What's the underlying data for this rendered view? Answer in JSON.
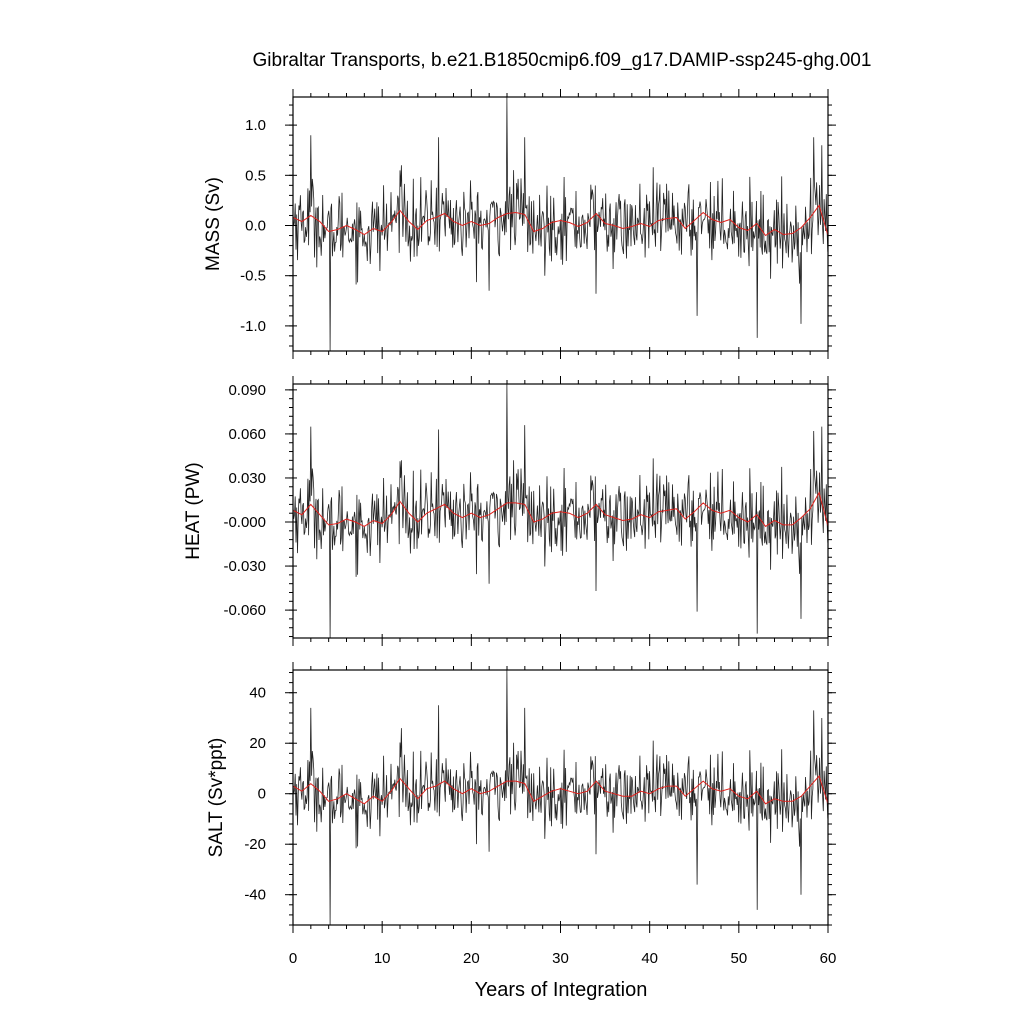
{
  "title": "Gibraltar Transports, b.e21.B1850cmip6.f09_g17.DAMIP-ssp245-ghg.001",
  "xlabel": "Years of Integration",
  "colors": {
    "raw": "#222222",
    "smooth": "#e0201b",
    "axis": "#000000",
    "background": "#ffffff"
  },
  "chart_data": [
    {
      "type": "line",
      "panel": "mass",
      "ylabel": "MASS (Sv)",
      "xlim": [
        0,
        60
      ],
      "ylim": [
        -1.25,
        1.28
      ],
      "x_ticks": [
        0,
        10,
        20,
        30,
        40,
        50,
        60
      ],
      "y_ticks": [
        1.0,
        0.5,
        0.0,
        -0.5,
        -1.0
      ],
      "y_tick_labels": [
        "1.0",
        "0.5",
        "0.0",
        "-0.5",
        "-1.0"
      ],
      "series": [
        {
          "role": "monthly",
          "sample_interval_years": 0.0833,
          "noise_std": 0.19,
          "peaks": [
            [
              2.0,
              0.9
            ],
            [
              4.2,
              -1.25
            ],
            [
              10.2,
              0.4
            ],
            [
              12.2,
              0.6
            ],
            [
              16.3,
              0.88
            ],
            [
              22.0,
              -0.65
            ],
            [
              24.0,
              1.28
            ],
            [
              26.0,
              0.88
            ],
            [
              34.0,
              -0.68
            ],
            [
              45.3,
              -0.9
            ],
            [
              52.1,
              -1.12
            ],
            [
              57.0,
              -0.98
            ],
            [
              58.4,
              0.88
            ],
            [
              59.3,
              0.8
            ]
          ]
        },
        {
          "role": "running-mean",
          "x": [
            0,
            1,
            2,
            3,
            4,
            5,
            6,
            7,
            8,
            9,
            10,
            11,
            12,
            13,
            14,
            15,
            16,
            17,
            18,
            19,
            20,
            21,
            22,
            23,
            24,
            25,
            26,
            27,
            28,
            29,
            30,
            31,
            32,
            33,
            34,
            35,
            36,
            37,
            38,
            39,
            40,
            41,
            42,
            43,
            44,
            45,
            46,
            47,
            48,
            49,
            50,
            51,
            52,
            53,
            54,
            55,
            56,
            57,
            58,
            59,
            60
          ],
          "y": [
            0.08,
            0.04,
            0.1,
            0.04,
            -0.06,
            -0.04,
            0.0,
            -0.04,
            -0.09,
            -0.03,
            -0.06,
            0.03,
            0.15,
            0.04,
            -0.04,
            0.05,
            0.08,
            0.12,
            0.04,
            0.0,
            0.04,
            0.0,
            0.02,
            0.08,
            0.12,
            0.13,
            0.11,
            -0.06,
            -0.03,
            0.03,
            0.05,
            0.03,
            -0.01,
            0.03,
            0.12,
            0.02,
            0.0,
            -0.03,
            -0.01,
            0.02,
            -0.01,
            0.05,
            0.07,
            0.08,
            -0.03,
            0.05,
            0.13,
            0.06,
            0.03,
            0.06,
            -0.02,
            -0.05,
            0.02,
            -0.1,
            -0.04,
            -0.09,
            -0.08,
            -0.02,
            0.08,
            0.2,
            -0.1
          ]
        }
      ]
    },
    {
      "type": "line",
      "panel": "heat",
      "ylabel": "HEAT (PW)",
      "xlim": [
        0,
        60
      ],
      "ylim": [
        -0.079,
        0.094
      ],
      "x_ticks": [
        0,
        10,
        20,
        30,
        40,
        50,
        60
      ],
      "y_ticks": [
        0.09,
        0.06,
        0.03,
        0.0,
        -0.03,
        -0.06
      ],
      "y_tick_labels": [
        "0.090",
        "0.060",
        "0.030",
        "-0.000",
        "-0.030",
        "-0.060"
      ],
      "series": [
        {
          "role": "monthly",
          "sample_interval_years": 0.0833,
          "noise_std": 0.013,
          "peaks": [
            [
              2.0,
              0.065
            ],
            [
              4.2,
              -0.079
            ],
            [
              10.2,
              0.03
            ],
            [
              12.2,
              0.042
            ],
            [
              16.3,
              0.063
            ],
            [
              22.0,
              -0.042
            ],
            [
              24.0,
              0.094
            ],
            [
              26.0,
              0.066
            ],
            [
              34.0,
              -0.047
            ],
            [
              45.3,
              -0.061
            ],
            [
              52.1,
              -0.076
            ],
            [
              57.0,
              -0.066
            ],
            [
              58.4,
              0.062
            ],
            [
              59.3,
              0.065
            ]
          ]
        },
        {
          "role": "running-mean",
          "x": [
            0,
            1,
            2,
            3,
            4,
            5,
            6,
            7,
            8,
            9,
            10,
            11,
            12,
            13,
            14,
            15,
            16,
            17,
            18,
            19,
            20,
            21,
            22,
            23,
            24,
            25,
            26,
            27,
            28,
            29,
            30,
            31,
            32,
            33,
            34,
            35,
            36,
            37,
            38,
            39,
            40,
            41,
            42,
            43,
            44,
            45,
            46,
            47,
            48,
            49,
            50,
            51,
            52,
            53,
            54,
            55,
            56,
            57,
            58,
            59,
            60
          ],
          "y": [
            0.008,
            0.005,
            0.012,
            0.005,
            -0.002,
            -0.001,
            0.002,
            0.0,
            -0.003,
            0.001,
            -0.001,
            0.005,
            0.014,
            0.006,
            0.0,
            0.006,
            0.009,
            0.012,
            0.006,
            0.003,
            0.006,
            0.003,
            0.005,
            0.009,
            0.013,
            0.013,
            0.012,
            0.0,
            0.002,
            0.006,
            0.007,
            0.006,
            0.003,
            0.006,
            0.012,
            0.005,
            0.003,
            0.001,
            0.002,
            0.005,
            0.003,
            0.007,
            0.008,
            0.009,
            0.002,
            0.007,
            0.013,
            0.008,
            0.006,
            0.008,
            0.003,
            0.0,
            0.005,
            -0.003,
            0.001,
            -0.002,
            -0.002,
            0.003,
            0.009,
            0.02,
            -0.003
          ]
        }
      ]
    },
    {
      "type": "line",
      "panel": "salt",
      "ylabel": "SALT (Sv*ppt)",
      "xlim": [
        0,
        60
      ],
      "ylim": [
        -52,
        49
      ],
      "x_ticks": [
        0,
        10,
        20,
        30,
        40,
        50,
        60
      ],
      "x_tick_labels": [
        "0",
        "10",
        "20",
        "30",
        "40",
        "50",
        "60"
      ],
      "y_ticks": [
        40,
        20,
        0,
        -20,
        -40
      ],
      "y_tick_labels": [
        "40",
        "20",
        "0",
        "-20",
        "-40"
      ],
      "series": [
        {
          "role": "monthly",
          "sample_interval_years": 0.0833,
          "noise_std": 6.8,
          "peaks": [
            [
              2.0,
              34
            ],
            [
              4.2,
              -52
            ],
            [
              10.2,
              15
            ],
            [
              12.2,
              26
            ],
            [
              16.3,
              35
            ],
            [
              22.0,
              -23
            ],
            [
              24.0,
              49
            ],
            [
              26.0,
              34
            ],
            [
              34.0,
              -24
            ],
            [
              45.3,
              -36
            ],
            [
              52.1,
              -46
            ],
            [
              57.0,
              -40
            ],
            [
              58.4,
              33
            ],
            [
              59.3,
              30
            ]
          ]
        },
        {
          "role": "running-mean",
          "x": [
            0,
            1,
            2,
            3,
            4,
            5,
            6,
            7,
            8,
            9,
            10,
            11,
            12,
            13,
            14,
            15,
            16,
            17,
            18,
            19,
            20,
            21,
            22,
            23,
            24,
            25,
            26,
            27,
            28,
            29,
            30,
            31,
            32,
            33,
            34,
            35,
            36,
            37,
            38,
            39,
            40,
            41,
            42,
            43,
            44,
            45,
            46,
            47,
            48,
            49,
            50,
            51,
            52,
            53,
            54,
            55,
            56,
            57,
            58,
            59,
            60
          ],
          "y": [
            3,
            1,
            4,
            1,
            -3,
            -2,
            0,
            -2,
            -4,
            -1,
            -3,
            1,
            6,
            2,
            -2,
            2,
            3,
            5,
            2,
            0,
            2,
            0,
            1,
            3,
            5,
            5,
            4,
            -3,
            -1,
            1,
            2,
            1,
            0,
            1,
            5,
            1,
            0,
            -1,
            -1,
            1,
            0,
            2,
            3,
            3,
            -1,
            2,
            5,
            2,
            1,
            2,
            -1,
            -2,
            1,
            -4,
            -2,
            -3,
            -3,
            -1,
            3,
            7,
            -4
          ]
        }
      ]
    }
  ]
}
